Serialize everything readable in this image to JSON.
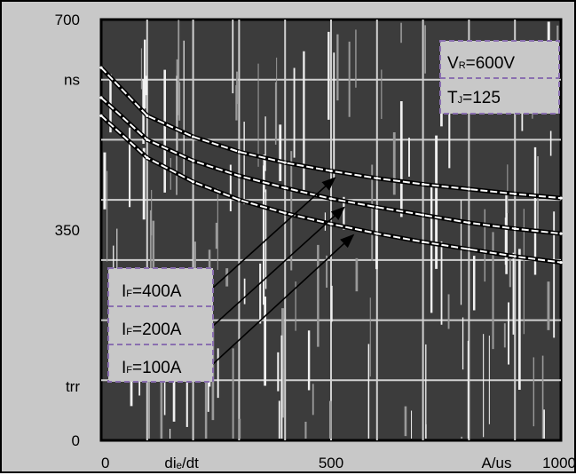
{
  "chart_data": {
    "type": "line",
    "title": "",
    "xlabel": "",
    "ylabel": "",
    "xlim": [
      0,
      1000
    ],
    "ylim": [
      0,
      700
    ],
    "grid": true,
    "x_ticks": [
      {
        "value": 0,
        "label": "0"
      },
      {
        "value": 500,
        "label": "500"
      },
      {
        "value": 1000,
        "label": "1000"
      }
    ],
    "x_axis_text": [
      {
        "value": 175,
        "label": "diₑ/dt"
      },
      {
        "value": 860,
        "label": "A/us"
      }
    ],
    "y_ticks": [
      {
        "value": 700,
        "label": "700"
      },
      {
        "value": 350,
        "label": "350"
      },
      {
        "value": 0,
        "label": "0"
      }
    ],
    "y_axis_text": [
      {
        "value": 600,
        "label": "ns"
      },
      {
        "value": 90,
        "label": "trr"
      }
    ],
    "conditions": {
      "vr_main": "V",
      "vr_sub": "R",
      "vr_value": "=600V",
      "tj_main": "T",
      "tj_sub": "J",
      "tj_value": "=125"
    },
    "series": [
      {
        "name": "IF=400A",
        "label_main": "I",
        "label_sub": "F",
        "label_value": "=400A",
        "color": "#ffffff",
        "x": [
          0,
          100,
          200,
          300,
          400,
          500,
          600,
          700,
          800,
          900,
          1000
        ],
        "y": [
          620,
          540,
          505,
          480,
          462,
          448,
          436,
          426,
          418,
          410,
          403
        ]
      },
      {
        "name": "IF=200A",
        "label_main": "I",
        "label_sub": "F",
        "label_value": "=200A",
        "color": "#ffffff",
        "x": [
          0,
          100,
          200,
          300,
          400,
          500,
          600,
          700,
          800,
          900,
          1000
        ],
        "y": [
          570,
          500,
          465,
          440,
          420,
          402,
          388,
          375,
          362,
          352,
          344
        ]
      },
      {
        "name": "IF=100A",
        "label_main": "I",
        "label_sub": "F",
        "label_value": "=100A",
        "color": "#ffffff",
        "x": [
          0,
          100,
          200,
          300,
          400,
          500,
          600,
          700,
          800,
          900,
          1000
        ],
        "y": [
          540,
          470,
          430,
          400,
          378,
          360,
          344,
          330,
          318,
          306,
          296
        ]
      }
    ],
    "arrows": [
      {
        "from_series": 0,
        "to_x": 520
      },
      {
        "from_series": 1,
        "to_x": 540
      },
      {
        "from_series": 2,
        "to_x": 560
      }
    ]
  }
}
